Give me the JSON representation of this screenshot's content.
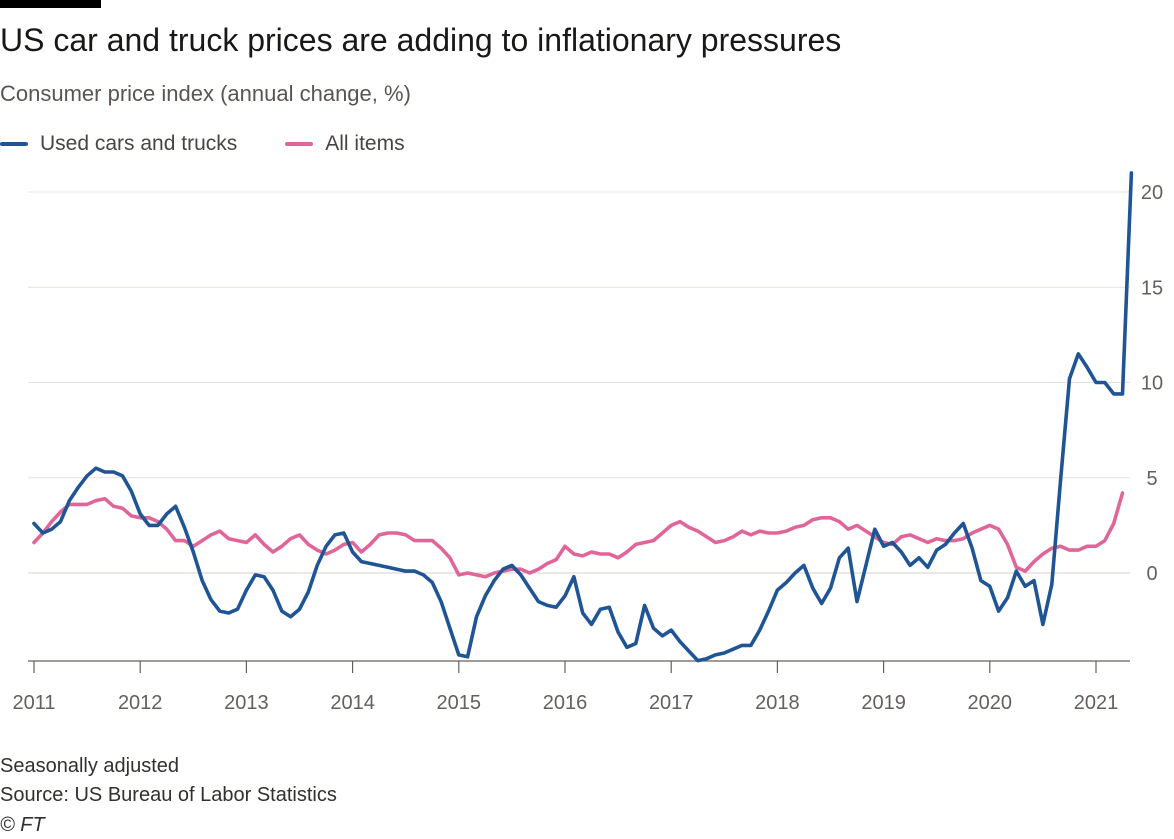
{
  "header": {
    "title": "US car and truck prices are adding to inflationary pressures",
    "subtitle": "Consumer price index (annual change, %)"
  },
  "footer": {
    "note": "Seasonally adjusted",
    "source": "Source: US Bureau of Labor Statistics",
    "copyright": "© FT"
  },
  "colors": {
    "used_cars": "#1f5495",
    "all_items": "#e0669a",
    "grid": "#e6e2df",
    "axis": "#66605c"
  },
  "chart_data": {
    "type": "line",
    "title": "US car and truck prices are adding to inflationary pressures",
    "subtitle": "Consumer price index (annual change, %)",
    "xlabel": "",
    "ylabel": "",
    "x_range": [
      "2011-01",
      "2021-04"
    ],
    "ylim": [
      -4.6,
      21
    ],
    "y_ticks": [
      0,
      5,
      10,
      15,
      20
    ],
    "x_ticks": [
      "2011",
      "2012",
      "2013",
      "2014",
      "2015",
      "2016",
      "2017",
      "2018",
      "2019",
      "2020",
      "2021"
    ],
    "grid": true,
    "legend_position": "top-left",
    "series": [
      {
        "name": "Used cars and trucks",
        "color": "#1f5495",
        "points": [
          [
            "2011-01",
            2.6
          ],
          [
            "2011-02",
            2.1
          ],
          [
            "2011-03",
            2.3
          ],
          [
            "2011-04",
            2.7
          ],
          [
            "2011-05",
            3.8
          ],
          [
            "2011-06",
            4.5
          ],
          [
            "2011-07",
            5.1
          ],
          [
            "2011-08",
            5.5
          ],
          [
            "2011-09",
            5.3
          ],
          [
            "2011-10",
            5.3
          ],
          [
            "2011-11",
            5.1
          ],
          [
            "2011-12",
            4.3
          ],
          [
            "2012-01",
            3.1
          ],
          [
            "2012-02",
            2.5
          ],
          [
            "2012-03",
            2.5
          ],
          [
            "2012-04",
            3.1
          ],
          [
            "2012-05",
            3.5
          ],
          [
            "2012-06",
            2.4
          ],
          [
            "2012-07",
            1.1
          ],
          [
            "2012-08",
            -0.4
          ],
          [
            "2012-09",
            -1.4
          ],
          [
            "2012-10",
            -2.0
          ],
          [
            "2012-11",
            -2.1
          ],
          [
            "2012-12",
            -1.9
          ],
          [
            "2013-01",
            -0.9
          ],
          [
            "2013-02",
            -0.1
          ],
          [
            "2013-03",
            -0.2
          ],
          [
            "2013-04",
            -0.9
          ],
          [
            "2013-05",
            -2.0
          ],
          [
            "2013-06",
            -2.3
          ],
          [
            "2013-07",
            -1.9
          ],
          [
            "2013-08",
            -1.0
          ],
          [
            "2013-09",
            0.4
          ],
          [
            "2013-10",
            1.4
          ],
          [
            "2013-11",
            2.0
          ],
          [
            "2013-12",
            2.1
          ],
          [
            "2014-01",
            1.1
          ],
          [
            "2014-02",
            0.6
          ],
          [
            "2014-03",
            0.5
          ],
          [
            "2014-04",
            0.4
          ],
          [
            "2014-05",
            0.3
          ],
          [
            "2014-06",
            0.2
          ],
          [
            "2014-07",
            0.1
          ],
          [
            "2014-08",
            0.1
          ],
          [
            "2014-09",
            -0.1
          ],
          [
            "2014-10",
            -0.5
          ],
          [
            "2014-11",
            -1.5
          ],
          [
            "2014-12",
            -2.9
          ],
          [
            "2015-01",
            -4.3
          ],
          [
            "2015-02",
            -4.4
          ],
          [
            "2015-03",
            -2.3
          ],
          [
            "2015-04",
            -1.2
          ],
          [
            "2015-05",
            -0.4
          ],
          [
            "2015-06",
            0.2
          ],
          [
            "2015-07",
            0.4
          ],
          [
            "2015-08",
            -0.1
          ],
          [
            "2015-09",
            -0.8
          ],
          [
            "2015-10",
            -1.5
          ],
          [
            "2015-11",
            -1.7
          ],
          [
            "2015-12",
            -1.8
          ],
          [
            "2016-01",
            -1.2
          ],
          [
            "2016-02",
            -0.2
          ],
          [
            "2016-03",
            -2.1
          ],
          [
            "2016-04",
            -2.7
          ],
          [
            "2016-05",
            -1.9
          ],
          [
            "2016-06",
            -1.8
          ],
          [
            "2016-07",
            -3.1
          ],
          [
            "2016-08",
            -3.9
          ],
          [
            "2016-09",
            -3.7
          ],
          [
            "2016-10",
            -1.7
          ],
          [
            "2016-11",
            -2.9
          ],
          [
            "2016-12",
            -3.3
          ],
          [
            "2017-01",
            -3.0
          ],
          [
            "2017-02",
            -3.6
          ],
          [
            "2017-03",
            -4.1
          ],
          [
            "2017-04",
            -4.6
          ],
          [
            "2017-05",
            -4.5
          ],
          [
            "2017-06",
            -4.3
          ],
          [
            "2017-07",
            -4.2
          ],
          [
            "2017-08",
            -4.0
          ],
          [
            "2017-09",
            -3.8
          ],
          [
            "2017-10",
            -3.8
          ],
          [
            "2017-11",
            -3.0
          ],
          [
            "2017-12",
            -2.0
          ],
          [
            "2018-01",
            -0.9
          ],
          [
            "2018-02",
            -0.5
          ],
          [
            "2018-03",
            0.0
          ],
          [
            "2018-04",
            0.4
          ],
          [
            "2018-05",
            -0.8
          ],
          [
            "2018-06",
            -1.6
          ],
          [
            "2018-07",
            -0.8
          ],
          [
            "2018-08",
            0.8
          ],
          [
            "2018-09",
            1.3
          ],
          [
            "2018-10",
            -1.5
          ],
          [
            "2018-11",
            0.4
          ],
          [
            "2018-12",
            2.3
          ],
          [
            "2019-01",
            1.4
          ],
          [
            "2019-02",
            1.6
          ],
          [
            "2019-03",
            1.1
          ],
          [
            "2019-04",
            0.4
          ],
          [
            "2019-05",
            0.8
          ],
          [
            "2019-06",
            0.3
          ],
          [
            "2019-07",
            1.2
          ],
          [
            "2019-08",
            1.5
          ],
          [
            "2019-09",
            2.1
          ],
          [
            "2019-10",
            2.6
          ],
          [
            "2019-11",
            1.3
          ],
          [
            "2019-12",
            -0.4
          ],
          [
            "2020-01",
            -0.7
          ],
          [
            "2020-02",
            -2.0
          ],
          [
            "2020-03",
            -1.3
          ],
          [
            "2020-04",
            0.1
          ],
          [
            "2020-05",
            -0.7
          ],
          [
            "2020-06",
            -0.4
          ],
          [
            "2020-07",
            -2.7
          ],
          [
            "2020-08",
            -0.6
          ],
          [
            "2020-09",
            4.9
          ],
          [
            "2020-10",
            10.2
          ],
          [
            "2020-11",
            11.5
          ],
          [
            "2020-12",
            10.8
          ],
          [
            "2021-01",
            10.0
          ],
          [
            "2021-02",
            10.0
          ],
          [
            "2021-03",
            9.4
          ],
          [
            "2021-04",
            9.4
          ],
          [
            "2021-05",
            21.0
          ]
        ]
      },
      {
        "name": "All items",
        "color": "#e0669a",
        "points": [
          [
            "2011-01",
            1.6
          ],
          [
            "2011-02",
            2.1
          ],
          [
            "2011-03",
            2.7
          ],
          [
            "2011-04",
            3.2
          ],
          [
            "2011-05",
            3.6
          ],
          [
            "2011-06",
            3.6
          ],
          [
            "2011-07",
            3.6
          ],
          [
            "2011-08",
            3.8
          ],
          [
            "2011-09",
            3.9
          ],
          [
            "2011-10",
            3.5
          ],
          [
            "2011-11",
            3.4
          ],
          [
            "2011-12",
            3.0
          ],
          [
            "2012-01",
            2.9
          ],
          [
            "2012-02",
            2.9
          ],
          [
            "2012-03",
            2.7
          ],
          [
            "2012-04",
            2.3
          ],
          [
            "2012-05",
            1.7
          ],
          [
            "2012-06",
            1.7
          ],
          [
            "2012-07",
            1.4
          ],
          [
            "2012-08",
            1.7
          ],
          [
            "2012-09",
            2.0
          ],
          [
            "2012-10",
            2.2
          ],
          [
            "2012-11",
            1.8
          ],
          [
            "2012-12",
            1.7
          ],
          [
            "2013-01",
            1.6
          ],
          [
            "2013-02",
            2.0
          ],
          [
            "2013-03",
            1.5
          ],
          [
            "2013-04",
            1.1
          ],
          [
            "2013-05",
            1.4
          ],
          [
            "2013-06",
            1.8
          ],
          [
            "2013-07",
            2.0
          ],
          [
            "2013-08",
            1.5
          ],
          [
            "2013-09",
            1.2
          ],
          [
            "2013-10",
            1.0
          ],
          [
            "2013-11",
            1.2
          ],
          [
            "2013-12",
            1.5
          ],
          [
            "2014-01",
            1.6
          ],
          [
            "2014-02",
            1.1
          ],
          [
            "2014-03",
            1.5
          ],
          [
            "2014-04",
            2.0
          ],
          [
            "2014-05",
            2.1
          ],
          [
            "2014-06",
            2.1
          ],
          [
            "2014-07",
            2.0
          ],
          [
            "2014-08",
            1.7
          ],
          [
            "2014-09",
            1.7
          ],
          [
            "2014-10",
            1.7
          ],
          [
            "2014-11",
            1.3
          ],
          [
            "2014-12",
            0.8
          ],
          [
            "2015-01",
            -0.1
          ],
          [
            "2015-02",
            0.0
          ],
          [
            "2015-03",
            -0.1
          ],
          [
            "2015-04",
            -0.2
          ],
          [
            "2015-05",
            0.0
          ],
          [
            "2015-06",
            0.1
          ],
          [
            "2015-07",
            0.2
          ],
          [
            "2015-08",
            0.2
          ],
          [
            "2015-09",
            0.0
          ],
          [
            "2015-10",
            0.2
          ],
          [
            "2015-11",
            0.5
          ],
          [
            "2015-12",
            0.7
          ],
          [
            "2016-01",
            1.4
          ],
          [
            "2016-02",
            1.0
          ],
          [
            "2016-03",
            0.9
          ],
          [
            "2016-04",
            1.1
          ],
          [
            "2016-05",
            1.0
          ],
          [
            "2016-06",
            1.0
          ],
          [
            "2016-07",
            0.8
          ],
          [
            "2016-08",
            1.1
          ],
          [
            "2016-09",
            1.5
          ],
          [
            "2016-10",
            1.6
          ],
          [
            "2016-11",
            1.7
          ],
          [
            "2016-12",
            2.1
          ],
          [
            "2017-01",
            2.5
          ],
          [
            "2017-02",
            2.7
          ],
          [
            "2017-03",
            2.4
          ],
          [
            "2017-04",
            2.2
          ],
          [
            "2017-05",
            1.9
          ],
          [
            "2017-06",
            1.6
          ],
          [
            "2017-07",
            1.7
          ],
          [
            "2017-08",
            1.9
          ],
          [
            "2017-09",
            2.2
          ],
          [
            "2017-10",
            2.0
          ],
          [
            "2017-11",
            2.2
          ],
          [
            "2017-12",
            2.1
          ],
          [
            "2018-01",
            2.1
          ],
          [
            "2018-02",
            2.2
          ],
          [
            "2018-03",
            2.4
          ],
          [
            "2018-04",
            2.5
          ],
          [
            "2018-05",
            2.8
          ],
          [
            "2018-06",
            2.9
          ],
          [
            "2018-07",
            2.9
          ],
          [
            "2018-08",
            2.7
          ],
          [
            "2018-09",
            2.3
          ],
          [
            "2018-10",
            2.5
          ],
          [
            "2018-11",
            2.2
          ],
          [
            "2018-12",
            1.9
          ],
          [
            "2019-01",
            1.6
          ],
          [
            "2019-02",
            1.5
          ],
          [
            "2019-03",
            1.9
          ],
          [
            "2019-04",
            2.0
          ],
          [
            "2019-05",
            1.8
          ],
          [
            "2019-06",
            1.6
          ],
          [
            "2019-07",
            1.8
          ],
          [
            "2019-08",
            1.7
          ],
          [
            "2019-09",
            1.7
          ],
          [
            "2019-10",
            1.8
          ],
          [
            "2019-11",
            2.1
          ],
          [
            "2019-12",
            2.3
          ],
          [
            "2020-01",
            2.5
          ],
          [
            "2020-02",
            2.3
          ],
          [
            "2020-03",
            1.5
          ],
          [
            "2020-04",
            0.3
          ],
          [
            "2020-05",
            0.1
          ],
          [
            "2020-06",
            0.6
          ],
          [
            "2020-07",
            1.0
          ],
          [
            "2020-08",
            1.3
          ],
          [
            "2020-09",
            1.4
          ],
          [
            "2020-10",
            1.2
          ],
          [
            "2020-11",
            1.2
          ],
          [
            "2020-12",
            1.4
          ],
          [
            "2021-01",
            1.4
          ],
          [
            "2021-02",
            1.7
          ],
          [
            "2021-03",
            2.6
          ],
          [
            "2021-04",
            4.2
          ]
        ]
      }
    ]
  }
}
